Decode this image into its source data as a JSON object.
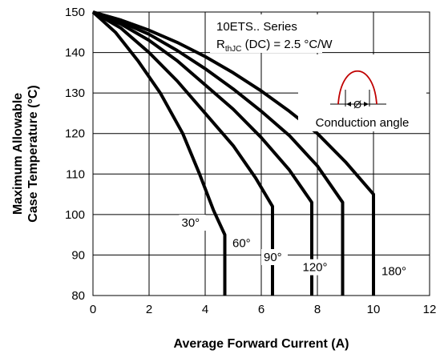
{
  "chart_data": {
    "type": "line",
    "xlabel": "Average Forward Current (A)",
    "ylabel_lines": [
      "Maximum Allowable",
      "Case Temperature (°C)"
    ],
    "xlim": [
      0,
      12
    ],
    "ylim": [
      80,
      150
    ],
    "x_ticks": [
      0,
      2,
      4,
      6,
      8,
      10,
      12
    ],
    "y_ticks": [
      80,
      90,
      100,
      110,
      120,
      130,
      140,
      150
    ],
    "grid": true,
    "annotation": {
      "series_title": "10ETS.. Series",
      "rth_main": "R",
      "rth_sub": "thJC",
      "rth_rest": " (DC) = 2.5 °C/W",
      "inset_symbol": "Ø",
      "inset_caption": "Conduction angle"
    },
    "series": [
      {
        "name": "30°",
        "points": [
          [
            0,
            150
          ],
          [
            0.8,
            145
          ],
          [
            1.6,
            138
          ],
          [
            2.4,
            130
          ],
          [
            3.2,
            120
          ],
          [
            3.8,
            110
          ],
          [
            4.3,
            101
          ],
          [
            4.7,
            95
          ],
          [
            4.7,
            80
          ]
        ]
      },
      {
        "name": "60°",
        "points": [
          [
            0,
            150
          ],
          [
            1,
            146
          ],
          [
            2,
            140
          ],
          [
            3,
            133
          ],
          [
            4,
            125
          ],
          [
            5,
            117
          ],
          [
            5.8,
            109
          ],
          [
            6.4,
            102
          ],
          [
            6.4,
            80
          ]
        ]
      },
      {
        "name": "90°",
        "points": [
          [
            0,
            150
          ],
          [
            1,
            147
          ],
          [
            2,
            143
          ],
          [
            3,
            138
          ],
          [
            4,
            132
          ],
          [
            5,
            126
          ],
          [
            6,
            119
          ],
          [
            7,
            111
          ],
          [
            7.8,
            103
          ],
          [
            7.8,
            80
          ]
        ]
      },
      {
        "name": "120°",
        "points": [
          [
            0,
            150
          ],
          [
            1,
            147.5
          ],
          [
            2,
            144.5
          ],
          [
            3,
            140.5
          ],
          [
            4,
            136
          ],
          [
            5,
            131
          ],
          [
            6,
            125.5
          ],
          [
            7,
            119.5
          ],
          [
            8,
            112
          ],
          [
            8.9,
            103
          ],
          [
            8.9,
            80
          ]
        ]
      },
      {
        "name": "180°",
        "points": [
          [
            0,
            150
          ],
          [
            1,
            148
          ],
          [
            2,
            145.5
          ],
          [
            3,
            142.5
          ],
          [
            4,
            139
          ],
          [
            5,
            135
          ],
          [
            6,
            130.5
          ],
          [
            7,
            125.5
          ],
          [
            8,
            120
          ],
          [
            9,
            113
          ],
          [
            10,
            105
          ],
          [
            10,
            80
          ]
        ]
      }
    ]
  }
}
